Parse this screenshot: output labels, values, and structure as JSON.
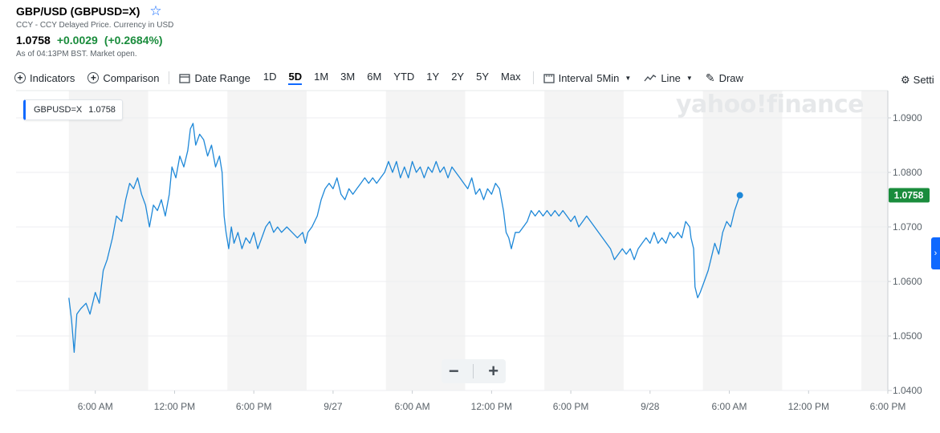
{
  "header": {
    "title": "GBP/USD (GBPUSD=X)",
    "subtitle": "CCY - CCY Delayed Price. Currency in USD",
    "price": "1.0758",
    "change": "+0.0029",
    "change_pct": "(+0.2684%)",
    "as_of": "As of 04:13PM BST. Market open.",
    "positive_color": "#1a8c3c"
  },
  "toolbar": {
    "indicators": "Indicators",
    "comparison": "Comparison",
    "date_range": "Date Range",
    "ranges": [
      "1D",
      "5D",
      "1M",
      "3M",
      "6M",
      "YTD",
      "1Y",
      "2Y",
      "5Y",
      "Max"
    ],
    "active_range": "5D",
    "interval_label": "Interval",
    "interval_value": "5Min",
    "chart_type": "Line",
    "draw": "Draw",
    "settings": "Setti"
  },
  "logo": "yahoo!finance",
  "legend": {
    "symbol": "GBPUSD=X",
    "value": "1.0758"
  },
  "zoom": {
    "minus": "−",
    "plus": "+"
  },
  "chart_data": {
    "type": "line",
    "title": "",
    "line_color": "#1e88d8",
    "last_label": "1.0758",
    "last_label_color": "#1a8c3c",
    "ylim": [
      1.04,
      1.095
    ],
    "y_ticks": [
      "1.0900",
      "1.0800",
      "1.0700",
      "1.0600",
      "1.0500",
      "1.0400"
    ],
    "y_tick_values": [
      1.09,
      1.08,
      1.07,
      1.06,
      1.05,
      1.04
    ],
    "xlim": [
      0,
      106
    ],
    "x_ticks": [
      {
        "label": "6:00 AM",
        "x": 6
      },
      {
        "label": "12:00 PM",
        "x": 12
      },
      {
        "label": "6:00 PM",
        "x": 18
      },
      {
        "label": "9/27",
        "x": 24
      },
      {
        "label": "6:00 AM",
        "x": 30
      },
      {
        "label": "12:00 PM",
        "x": 36
      },
      {
        "label": "6:00 PM",
        "x": 42
      },
      {
        "label": "9/28",
        "x": 48
      },
      {
        "label": "6:00 AM",
        "x": 54
      },
      {
        "label": "12:00 PM",
        "x": 60
      },
      {
        "label": "6:00 PM",
        "x": 66
      }
    ],
    "shaded_sessions": [
      [
        4,
        10
      ],
      [
        16,
        22
      ],
      [
        28,
        34
      ],
      [
        40,
        46
      ],
      [
        52,
        58
      ],
      [
        64,
        66
      ]
    ],
    "series": [
      {
        "values": [
          [
            4.0,
            1.057
          ],
          [
            4.2,
            1.053
          ],
          [
            4.4,
            1.047
          ],
          [
            4.6,
            1.054
          ],
          [
            4.9,
            1.055
          ],
          [
            5.3,
            1.056
          ],
          [
            5.6,
            1.054
          ],
          [
            6.0,
            1.058
          ],
          [
            6.3,
            1.056
          ],
          [
            6.6,
            1.062
          ],
          [
            6.9,
            1.064
          ],
          [
            7.3,
            1.068
          ],
          [
            7.6,
            1.072
          ],
          [
            8.0,
            1.071
          ],
          [
            8.3,
            1.075
          ],
          [
            8.6,
            1.078
          ],
          [
            8.9,
            1.077
          ],
          [
            9.2,
            1.079
          ],
          [
            9.5,
            1.076
          ],
          [
            9.8,
            1.074
          ],
          [
            10.1,
            1.07
          ],
          [
            10.4,
            1.074
          ],
          [
            10.7,
            1.073
          ],
          [
            11.0,
            1.075
          ],
          [
            11.3,
            1.072
          ],
          [
            11.6,
            1.076
          ],
          [
            11.8,
            1.081
          ],
          [
            12.1,
            1.079
          ],
          [
            12.4,
            1.083
          ],
          [
            12.7,
            1.081
          ],
          [
            13.0,
            1.084
          ],
          [
            13.2,
            1.088
          ],
          [
            13.4,
            1.089
          ],
          [
            13.6,
            1.085
          ],
          [
            13.9,
            1.087
          ],
          [
            14.2,
            1.086
          ],
          [
            14.5,
            1.083
          ],
          [
            14.8,
            1.085
          ],
          [
            15.1,
            1.081
          ],
          [
            15.4,
            1.083
          ],
          [
            15.6,
            1.08
          ],
          [
            15.75,
            1.072
          ],
          [
            15.9,
            1.069
          ],
          [
            16.1,
            1.066
          ],
          [
            16.3,
            1.07
          ],
          [
            16.5,
            1.067
          ],
          [
            16.8,
            1.069
          ],
          [
            17.1,
            1.066
          ],
          [
            17.4,
            1.068
          ],
          [
            17.7,
            1.067
          ],
          [
            18.0,
            1.069
          ],
          [
            18.3,
            1.066
          ],
          [
            18.6,
            1.068
          ],
          [
            18.9,
            1.07
          ],
          [
            19.2,
            1.071
          ],
          [
            19.5,
            1.069
          ],
          [
            19.8,
            1.07
          ],
          [
            20.1,
            1.069
          ],
          [
            20.5,
            1.07
          ],
          [
            20.9,
            1.069
          ],
          [
            21.3,
            1.068
          ],
          [
            21.7,
            1.069
          ],
          [
            21.9,
            1.067
          ],
          [
            22.1,
            1.069
          ],
          [
            22.4,
            1.07
          ],
          [
            22.8,
            1.072
          ],
          [
            23.1,
            1.075
          ],
          [
            23.4,
            1.077
          ],
          [
            23.7,
            1.078
          ],
          [
            24.0,
            1.077
          ],
          [
            24.3,
            1.079
          ],
          [
            24.6,
            1.076
          ],
          [
            24.9,
            1.075
          ],
          [
            25.2,
            1.077
          ],
          [
            25.5,
            1.076
          ],
          [
            25.8,
            1.077
          ],
          [
            26.1,
            1.078
          ],
          [
            26.4,
            1.079
          ],
          [
            26.7,
            1.078
          ],
          [
            27.0,
            1.079
          ],
          [
            27.3,
            1.078
          ],
          [
            27.6,
            1.079
          ],
          [
            27.9,
            1.08
          ],
          [
            28.2,
            1.082
          ],
          [
            28.5,
            1.08
          ],
          [
            28.8,
            1.082
          ],
          [
            29.1,
            1.079
          ],
          [
            29.4,
            1.081
          ],
          [
            29.7,
            1.079
          ],
          [
            30.0,
            1.082
          ],
          [
            30.3,
            1.08
          ],
          [
            30.6,
            1.081
          ],
          [
            30.9,
            1.079
          ],
          [
            31.2,
            1.081
          ],
          [
            31.5,
            1.08
          ],
          [
            31.8,
            1.082
          ],
          [
            32.1,
            1.08
          ],
          [
            32.4,
            1.081
          ],
          [
            32.7,
            1.079
          ],
          [
            33.0,
            1.081
          ],
          [
            33.3,
            1.08
          ],
          [
            33.6,
            1.079
          ],
          [
            33.9,
            1.078
          ],
          [
            34.2,
            1.077
          ],
          [
            34.5,
            1.079
          ],
          [
            34.8,
            1.076
          ],
          [
            35.1,
            1.077
          ],
          [
            35.4,
            1.075
          ],
          [
            35.7,
            1.077
          ],
          [
            36.0,
            1.076
          ],
          [
            36.3,
            1.078
          ],
          [
            36.6,
            1.077
          ],
          [
            36.9,
            1.073
          ],
          [
            37.1,
            1.069
          ],
          [
            37.3,
            1.068
          ],
          [
            37.5,
            1.066
          ],
          [
            37.8,
            1.069
          ],
          [
            38.1,
            1.069
          ],
          [
            38.4,
            1.07
          ],
          [
            38.7,
            1.071
          ],
          [
            39.0,
            1.073
          ],
          [
            39.3,
            1.072
          ],
          [
            39.6,
            1.073
          ],
          [
            39.9,
            1.072
          ],
          [
            40.2,
            1.073
          ],
          [
            40.5,
            1.072
          ],
          [
            40.8,
            1.073
          ],
          [
            41.1,
            1.072
          ],
          [
            41.4,
            1.073
          ],
          [
            41.7,
            1.072
          ],
          [
            42.0,
            1.071
          ],
          [
            42.3,
            1.072
          ],
          [
            42.6,
            1.07
          ],
          [
            42.9,
            1.071
          ],
          [
            43.2,
            1.072
          ],
          [
            43.5,
            1.071
          ],
          [
            43.8,
            1.07
          ],
          [
            44.1,
            1.069
          ],
          [
            44.4,
            1.068
          ],
          [
            44.7,
            1.067
          ],
          [
            45.0,
            1.066
          ],
          [
            45.3,
            1.064
          ],
          [
            45.6,
            1.065
          ],
          [
            45.9,
            1.066
          ],
          [
            46.2,
            1.065
          ],
          [
            46.5,
            1.066
          ],
          [
            46.8,
            1.064
          ],
          [
            47.1,
            1.066
          ],
          [
            47.4,
            1.067
          ],
          [
            47.7,
            1.068
          ],
          [
            48.0,
            1.067
          ],
          [
            48.3,
            1.069
          ],
          [
            48.6,
            1.067
          ],
          [
            48.9,
            1.068
          ],
          [
            49.2,
            1.067
          ],
          [
            49.5,
            1.069
          ],
          [
            49.8,
            1.068
          ],
          [
            50.1,
            1.069
          ],
          [
            50.4,
            1.068
          ],
          [
            50.7,
            1.071
          ],
          [
            51.0,
            1.07
          ],
          [
            51.1,
            1.068
          ],
          [
            51.3,
            1.066
          ],
          [
            51.4,
            1.059
          ],
          [
            51.6,
            1.057
          ],
          [
            51.8,
            1.058
          ],
          [
            52.1,
            1.06
          ],
          [
            52.4,
            1.062
          ],
          [
            52.6,
            1.064
          ],
          [
            52.9,
            1.067
          ],
          [
            53.2,
            1.065
          ],
          [
            53.5,
            1.069
          ],
          [
            53.8,
            1.071
          ],
          [
            54.1,
            1.07
          ],
          [
            54.4,
            1.073
          ],
          [
            54.8,
            1.0758
          ]
        ]
      }
    ]
  }
}
